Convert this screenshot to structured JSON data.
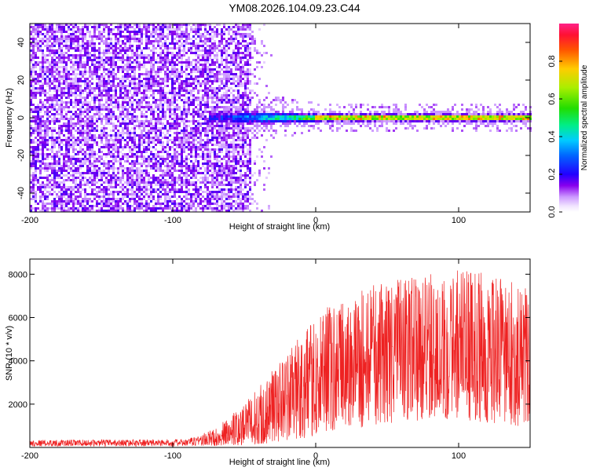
{
  "title": "YM08.2026.104.09.23.C44",
  "chart_data": [
    {
      "type": "heatmap",
      "name": "spectrogram",
      "xlabel": "Height of straight line (km)",
      "ylabel": "Frequency (Hz)",
      "xlim": [
        -200,
        150
      ],
      "ylim": [
        -50,
        50
      ],
      "xticks": [
        {
          "value": -200,
          "label": "-200"
        },
        {
          "value": -100,
          "label": "-100"
        },
        {
          "value": 0,
          "label": "0"
        },
        {
          "value": 100,
          "label": "100"
        }
      ],
      "yticks": [
        {
          "value": -40,
          "label": "-40"
        },
        {
          "value": -20,
          "label": "-20"
        },
        {
          "value": 0,
          "label": "0"
        },
        {
          "value": 20,
          "label": "20"
        },
        {
          "value": 40,
          "label": "40"
        }
      ],
      "colorbar": {
        "label": "Normalized spectral amplitude",
        "range": [
          0,
          1
        ],
        "ticks": [
          {
            "value": 0.0,
            "label": "0.0"
          },
          {
            "value": 0.2,
            "label": "0.2"
          },
          {
            "value": 0.4,
            "label": "0.4"
          },
          {
            "value": 0.6,
            "label": "0.6"
          },
          {
            "value": 0.8,
            "label": "0.8"
          }
        ]
      },
      "features": {
        "noise_region_x": [
          -200,
          -45
        ],
        "noise_amplitude": 0.1,
        "signal_line_freq": 0,
        "signal_onset_x": -50,
        "peak_amplitude_region_x": [
          0,
          150
        ],
        "peak_amplitude": 0.95
      }
    },
    {
      "type": "line",
      "name": "snr",
      "color": "#ee2222",
      "xlabel": "Height of straight line (km)",
      "ylabel": "SNR (10 * v/v)",
      "xlim": [
        -200,
        150
      ],
      "ylim": [
        0,
        8700
      ],
      "xticks": [
        {
          "value": -200,
          "label": "-200"
        },
        {
          "value": -100,
          "label": "-100"
        },
        {
          "value": 0,
          "label": "0"
        },
        {
          "value": 100,
          "label": "100"
        }
      ],
      "yticks": [
        {
          "value": 2000,
          "label": "2000"
        },
        {
          "value": 4000,
          "label": "4000"
        },
        {
          "value": 6000,
          "label": "6000"
        },
        {
          "value": 8000,
          "label": "8000"
        }
      ],
      "envelope": [
        {
          "x": -200,
          "low": 50,
          "high": 350
        },
        {
          "x": -90,
          "low": 50,
          "high": 380
        },
        {
          "x": -70,
          "low": 80,
          "high": 900
        },
        {
          "x": -50,
          "low": 100,
          "high": 2000
        },
        {
          "x": -30,
          "low": 200,
          "high": 3600
        },
        {
          "x": -10,
          "low": 400,
          "high": 5200
        },
        {
          "x": 10,
          "low": 700,
          "high": 6600
        },
        {
          "x": 30,
          "low": 900,
          "high": 7400
        },
        {
          "x": 60,
          "low": 1200,
          "high": 7800
        },
        {
          "x": 100,
          "low": 1300,
          "high": 8400
        },
        {
          "x": 150,
          "low": 900,
          "high": 7400
        }
      ]
    }
  ]
}
